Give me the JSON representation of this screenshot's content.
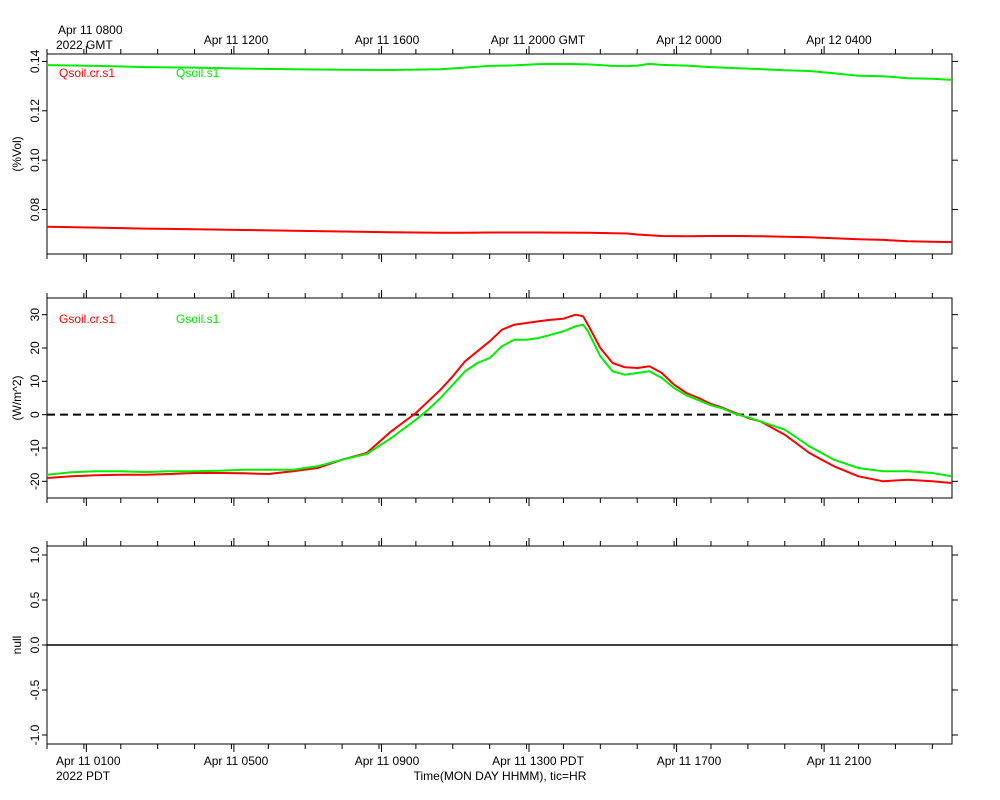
{
  "chart_data": [
    {
      "type": "line",
      "ylabel": "(%Vol)",
      "ylim": [
        0.062,
        0.143
      ],
      "yticks": [
        0.08,
        0.1,
        0.12,
        0.14
      ],
      "ytick_labels": [
        "0.08",
        "0.10",
        "0.12",
        "0.14"
      ],
      "series": [
        {
          "name": "Qsoil.cr.s1",
          "color": "#ff0000",
          "x": [
            0,
            2,
            4,
            6,
            8,
            10,
            12,
            14,
            16,
            17,
            18,
            19,
            20,
            22,
            23.6,
            24,
            24.5,
            25,
            26,
            27,
            28,
            29,
            30,
            31,
            32,
            33,
            34,
            35,
            36,
            36.8
          ],
          "y": [
            0.073,
            0.0727,
            0.0723,
            0.072,
            0.0717,
            0.0714,
            0.0711,
            0.0708,
            0.0706,
            0.0706,
            0.0707,
            0.0707,
            0.0707,
            0.0706,
            0.0703,
            0.0699,
            0.0696,
            0.0693,
            0.0692,
            0.0693,
            0.0693,
            0.0692,
            0.069,
            0.0688,
            0.0684,
            0.068,
            0.0677,
            0.0672,
            0.067,
            0.0668
          ]
        },
        {
          "name": "Qsoil.s1",
          "color": "#00ee00",
          "x": [
            0,
            2,
            4,
            6,
            8,
            10,
            12,
            14,
            16,
            17,
            18,
            19,
            20,
            21,
            22,
            23,
            23.6,
            24,
            24.5,
            25,
            26,
            27,
            28,
            29,
            30,
            31,
            32,
            33,
            34,
            35,
            36,
            36.8
          ],
          "y": [
            0.1385,
            0.1382,
            0.1377,
            0.1375,
            0.1371,
            0.1368,
            0.1366,
            0.1365,
            0.1368,
            0.1375,
            0.1382,
            0.1384,
            0.1389,
            0.139,
            0.1388,
            0.1382,
            0.1381,
            0.1383,
            0.139,
            0.1386,
            0.1383,
            0.1377,
            0.1373,
            0.1369,
            0.1364,
            0.1361,
            0.1352,
            0.1342,
            0.134,
            0.1332,
            0.133,
            0.1325
          ]
        }
      ]
    },
    {
      "type": "line",
      "ylabel": "(W/m^2)",
      "ylim": [
        -25,
        35
      ],
      "yticks": [
        -20,
        -10,
        0,
        10,
        20,
        30
      ],
      "ytick_labels": [
        "-20",
        "-10",
        "0",
        "10",
        "20",
        "30"
      ],
      "zero_line": "dashed",
      "series": [
        {
          "name": "Gsoil.cr.s1",
          "color": "#ff0000",
          "x": [
            0,
            1,
            2,
            3,
            4,
            5,
            6,
            7,
            8,
            9,
            10,
            11,
            12,
            13,
            14,
            15,
            15.5,
            16,
            16.5,
            17,
            17.5,
            18,
            18.5,
            19,
            19.5,
            20,
            20.5,
            21,
            21.5,
            21.8,
            22,
            22.5,
            23,
            23.5,
            24,
            24.5,
            25,
            25.5,
            26,
            26.5,
            27,
            27.5,
            28,
            28.5,
            29,
            30,
            31,
            32,
            33,
            34,
            35,
            36,
            36.8
          ],
          "y": [
            -19,
            -18.5,
            -18.2,
            -18,
            -18,
            -17.8,
            -17.5,
            -17.5,
            -17.6,
            -17.8,
            -17,
            -16,
            -13.5,
            -11.5,
            -5,
            0.5,
            4,
            7.5,
            11.5,
            16,
            19,
            22,
            25.5,
            27,
            27.5,
            28,
            28.5,
            28.8,
            30,
            29.5,
            27,
            20,
            15.5,
            14.2,
            14,
            14.5,
            12.5,
            9,
            6.5,
            5,
            3.2,
            2,
            0.5,
            -1,
            -2,
            -6,
            -11.5,
            -15.5,
            -18.5,
            -20,
            -19.5,
            -20,
            -20.5
          ]
        },
        {
          "name": "Gsoil.s1",
          "color": "#00ee00",
          "x": [
            0,
            1,
            2,
            3,
            4,
            5,
            6,
            7,
            8,
            9,
            10,
            11,
            12,
            13,
            14,
            15,
            15.5,
            16,
            16.5,
            17,
            17.5,
            18,
            18.5,
            19,
            19.5,
            20,
            20.5,
            21,
            21.5,
            21.8,
            22,
            22.5,
            23,
            23.5,
            24,
            24.5,
            25,
            25.5,
            26,
            26.5,
            27,
            27.5,
            28,
            28.5,
            29,
            30,
            31,
            32,
            33,
            34,
            35,
            36,
            36.8
          ],
          "y": [
            -18,
            -17.3,
            -17,
            -17,
            -17.2,
            -17,
            -17,
            -16.8,
            -16.5,
            -16.5,
            -16.5,
            -15.5,
            -13.5,
            -11.8,
            -7,
            -1.5,
            1.5,
            5,
            9,
            13,
            15.5,
            17,
            20.5,
            22.5,
            22.5,
            23,
            24,
            25,
            26.5,
            27,
            25,
            17.5,
            13,
            12,
            12.5,
            13,
            11,
            8,
            5.8,
            4.3,
            2.8,
            1.8,
            0.2,
            -0.8,
            -2,
            -4.5,
            -9.5,
            -13.5,
            -16,
            -17,
            -17,
            -17.5,
            -18.5
          ]
        }
      ]
    },
    {
      "type": "line",
      "ylabel": "null",
      "ylim": [
        -1.1,
        1.1
      ],
      "yticks": [
        -1.0,
        -0.5,
        0.0,
        0.5,
        1.0
      ],
      "ytick_labels": [
        "-1.0",
        "-0.5",
        "0.0",
        "0.5",
        "1.0"
      ],
      "series": [
        {
          "color": "#000000",
          "x": [
            0,
            36.8
          ],
          "y": [
            0,
            0
          ]
        }
      ]
    }
  ],
  "axis": {
    "xlim": [
      0,
      36.8
    ],
    "major_ticks": [
      1.6,
      7.6,
      13.6,
      19.6,
      25.6,
      31.6
    ],
    "minor_tick_step": 1.5,
    "top_labels": [
      "Apr 11 0800",
      "Apr 11 1200",
      "Apr 11 1600",
      "Apr 11 2000 GMT",
      "Apr 12 0000",
      "Apr 12 0400"
    ],
    "top_year": "2022 GMT",
    "bottom_labels": [
      "Apr 11 0100",
      "Apr 11 0500",
      "Apr 11 0900",
      "Apr 11 1300 PDT",
      "Apr 11 1700",
      "Apr 11 2100"
    ],
    "bottom_year": "2022 PDT",
    "xlabel": "Time(MON DAY HHMM), tic=HR"
  }
}
